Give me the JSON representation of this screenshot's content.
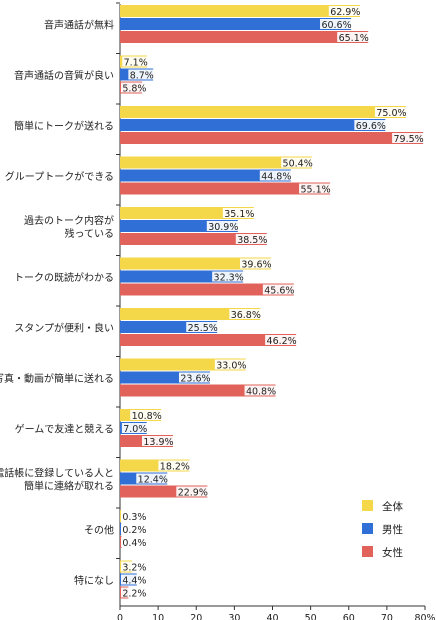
{
  "chart_data": {
    "type": "bar",
    "orientation": "horizontal",
    "categories": [
      [
        "音声通話が無料"
      ],
      [
        "音声通話の音質が良い"
      ],
      [
        "簡単にトークが送れる"
      ],
      [
        "グループトークができる"
      ],
      [
        "過去のトーク内容が",
        "残っている"
      ],
      [
        "トークの既読がわかる"
      ],
      [
        "スタンプが便利・良い"
      ],
      [
        "写真・動画が簡単に送れる"
      ],
      [
        "ゲームで友達と競える"
      ],
      [
        "電話帳に登録している人と",
        "簡単に連絡が取れる"
      ],
      [
        "その他"
      ],
      [
        "特になし"
      ]
    ],
    "series": [
      {
        "name": "全体",
        "color": "#f5d74a",
        "values": [
          62.9,
          7.1,
          75.0,
          50.4,
          35.1,
          39.6,
          36.8,
          33.0,
          10.8,
          18.2,
          0.3,
          3.2
        ],
        "labels": [
          "62.9%",
          "7.1%",
          "75.0%",
          "50.4%",
          "35.1%",
          "39.6%",
          "36.8%",
          "33.0%",
          "10.8%",
          "18.2%",
          "0.3%",
          "3.2%"
        ]
      },
      {
        "name": "男性",
        "color": "#2f6fd6",
        "values": [
          60.6,
          8.7,
          69.6,
          44.8,
          30.9,
          32.3,
          25.5,
          23.6,
          7.0,
          12.4,
          0.2,
          4.4
        ],
        "labels": [
          "60.6%",
          "8.7%",
          "69.6%",
          "44.8%",
          "30.9%",
          "32.3%",
          "25.5%",
          "23.6%",
          "7.0%",
          "12.4%",
          "0.2%",
          "4.4%"
        ]
      },
      {
        "name": "女性",
        "color": "#e0625a",
        "values": [
          65.1,
          5.8,
          79.5,
          55.1,
          38.5,
          45.6,
          46.2,
          40.8,
          13.9,
          22.9,
          0.4,
          2.2
        ],
        "labels": [
          "65.1%",
          "5.8%",
          "79.5%",
          "55.1%",
          "38.5%",
          "45.6%",
          "46.2%",
          "40.8%",
          "13.9%",
          "22.9%",
          "0.4%",
          "2.2%"
        ]
      }
    ],
    "xlim": [
      0,
      80
    ],
    "xticks": [
      "0",
      "10",
      "20",
      "30",
      "40",
      "50",
      "60",
      "70",
      "80%"
    ],
    "legend": [
      {
        "name": "全体",
        "color": "#f5d74a"
      },
      {
        "name": "男性",
        "color": "#2f6fd6"
      },
      {
        "name": "女性",
        "color": "#e0625a"
      }
    ],
    "legend_position": "lower-right",
    "grid": false
  }
}
